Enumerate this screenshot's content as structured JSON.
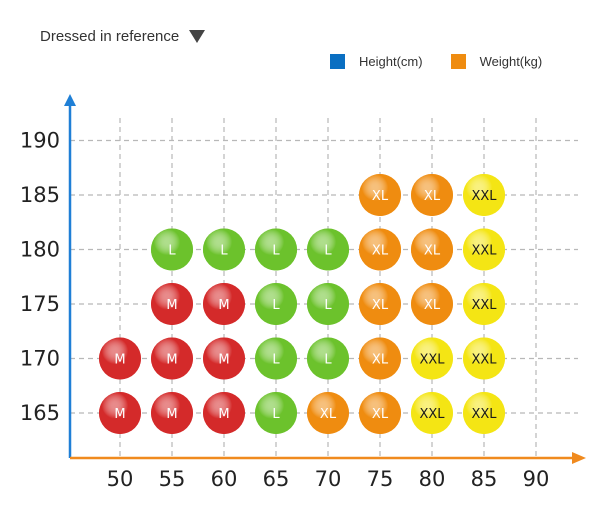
{
  "header": {
    "title": "Dressed in reference"
  },
  "legend": {
    "items": [
      {
        "label": "Height(cm)",
        "color": "#0a6fc2"
      },
      {
        "label": "Weight(kg)",
        "color": "#ef8c10"
      }
    ]
  },
  "colors": {
    "M": "#d42a2a",
    "L": "#6cc22c",
    "XL": "#ef8c10",
    "XXL": "#f4e514",
    "axis_y": "#1f7fd6",
    "axis_x": "#f08a1e"
  },
  "chart_data": {
    "type": "scatter",
    "title": "Dressed in reference",
    "xlabel": "Weight(kg)",
    "ylabel": "Height(cm)",
    "x_ticks": [
      50,
      55,
      60,
      65,
      70,
      75,
      80,
      85,
      90
    ],
    "y_ticks": [
      165,
      170,
      175,
      180,
      185,
      190
    ],
    "xlim": [
      45,
      90
    ],
    "ylim": [
      162.5,
      190
    ],
    "grid": true,
    "points": [
      {
        "x": 75,
        "y": 185,
        "size": "XL"
      },
      {
        "x": 80,
        "y": 185,
        "size": "XL"
      },
      {
        "x": 85,
        "y": 185,
        "size": "XXL"
      },
      {
        "x": 55,
        "y": 180,
        "size": "L"
      },
      {
        "x": 60,
        "y": 180,
        "size": "L"
      },
      {
        "x": 65,
        "y": 180,
        "size": "L"
      },
      {
        "x": 70,
        "y": 180,
        "size": "L"
      },
      {
        "x": 75,
        "y": 180,
        "size": "XL"
      },
      {
        "x": 80,
        "y": 180,
        "size": "XL"
      },
      {
        "x": 85,
        "y": 180,
        "size": "XXL"
      },
      {
        "x": 55,
        "y": 175,
        "size": "M"
      },
      {
        "x": 60,
        "y": 175,
        "size": "M"
      },
      {
        "x": 65,
        "y": 175,
        "size": "L"
      },
      {
        "x": 70,
        "y": 175,
        "size": "L"
      },
      {
        "x": 75,
        "y": 175,
        "size": "XL"
      },
      {
        "x": 80,
        "y": 175,
        "size": "XL"
      },
      {
        "x": 85,
        "y": 175,
        "size": "XXL"
      },
      {
        "x": 50,
        "y": 170,
        "size": "M"
      },
      {
        "x": 55,
        "y": 170,
        "size": "M"
      },
      {
        "x": 60,
        "y": 170,
        "size": "M"
      },
      {
        "x": 65,
        "y": 170,
        "size": "L"
      },
      {
        "x": 70,
        "y": 170,
        "size": "L"
      },
      {
        "x": 75,
        "y": 170,
        "size": "XL"
      },
      {
        "x": 80,
        "y": 170,
        "size": "XXL"
      },
      {
        "x": 85,
        "y": 170,
        "size": "XXL"
      },
      {
        "x": 50,
        "y": 165,
        "size": "M"
      },
      {
        "x": 55,
        "y": 165,
        "size": "M"
      },
      {
        "x": 60,
        "y": 165,
        "size": "M"
      },
      {
        "x": 65,
        "y": 165,
        "size": "L"
      },
      {
        "x": 70,
        "y": 165,
        "size": "XL"
      },
      {
        "x": 75,
        "y": 165,
        "size": "XL"
      },
      {
        "x": 80,
        "y": 165,
        "size": "XXL"
      },
      {
        "x": 85,
        "y": 165,
        "size": "XXL"
      }
    ]
  }
}
